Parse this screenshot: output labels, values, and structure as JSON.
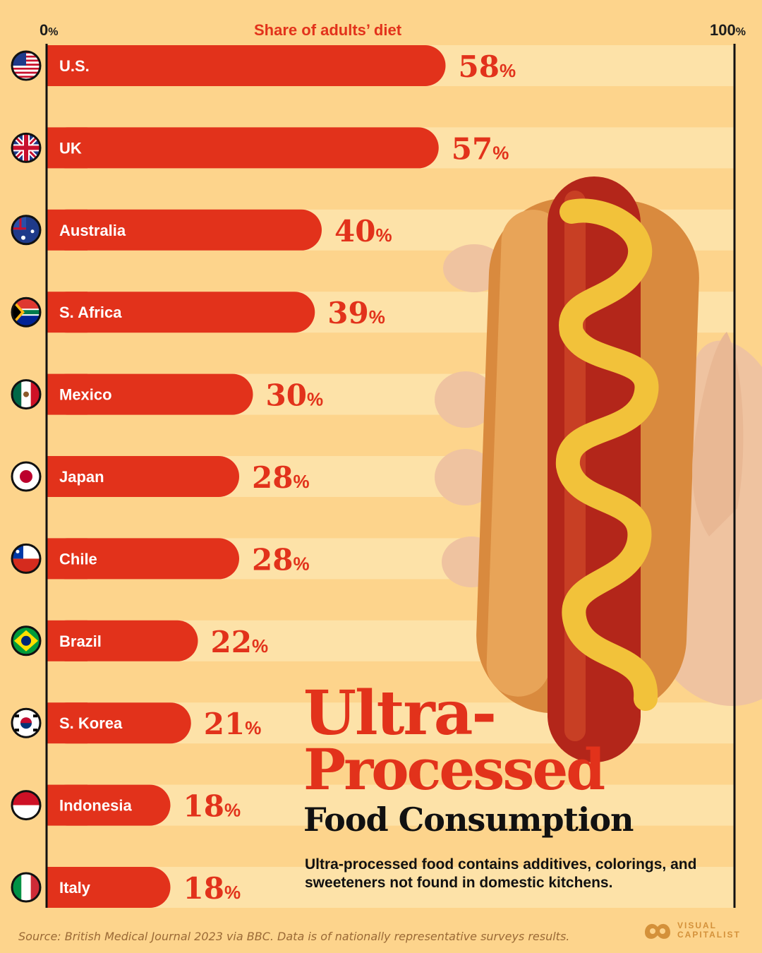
{
  "axis": {
    "zero_num": "0",
    "hundred_num": "100",
    "pct": "%",
    "title": "Share of adults’ diet"
  },
  "title": {
    "line1": "Ultra-",
    "line2": "Processed",
    "line3": "Food Consumption"
  },
  "subtitle": "Ultra-processed food contains additives, colorings, and sweeteners not found in domestic kitchens.",
  "source": "Source: British Medical Journal 2023 via BBC. Data is of nationally representative surveys results.",
  "brand": {
    "line1": "VISUAL",
    "line2": "CAPITALIST"
  },
  "colors": {
    "background": "#fdd48c",
    "bar": "#e2321b",
    "track": "#fde2a8",
    "text_dark": "#111111",
    "bun": "#d98a3e",
    "sausage": "#b3261a",
    "mustard": "#f2c23a"
  },
  "chart_data": {
    "type": "bar",
    "orientation": "horizontal",
    "xlim": [
      0,
      100
    ],
    "value_suffix": "%",
    "categories": [
      "U.S.",
      "UK",
      "Australia",
      "S. Africa",
      "Mexico",
      "Japan",
      "Chile",
      "Brazil",
      "S. Korea",
      "Indonesia",
      "Italy"
    ],
    "values": [
      58,
      57,
      40,
      39,
      30,
      28,
      28,
      22,
      21,
      18,
      18
    ],
    "flags": [
      "us-flag-icon",
      "uk-flag-icon",
      "australia-flag-icon",
      "south-africa-flag-icon",
      "mexico-flag-icon",
      "japan-flag-icon",
      "chile-flag-icon",
      "brazil-flag-icon",
      "south-korea-flag-icon",
      "indonesia-flag-icon",
      "italy-flag-icon"
    ]
  }
}
